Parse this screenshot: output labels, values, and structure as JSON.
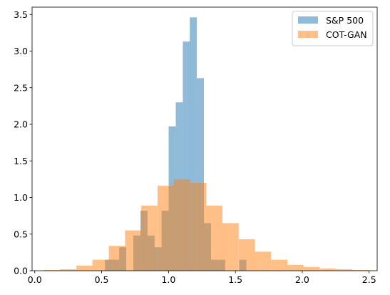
{
  "chart_data": {
    "type": "histogram",
    "xlim": [
      -0.02,
      2.56
    ],
    "ylim": [
      0,
      3.6
    ],
    "xticks": [
      0.0,
      0.5,
      1.0,
      1.5,
      2.0,
      2.5
    ],
    "xtick_labels": [
      "0.0",
      "0.5",
      "1.0",
      "1.5",
      "2.0",
      "2.5"
    ],
    "yticks": [
      0.0,
      0.5,
      1.0,
      1.5,
      2.0,
      2.5,
      3.0,
      3.5
    ],
    "ytick_labels": [
      "0.0",
      "0.5",
      "1.0",
      "1.5",
      "2.0",
      "2.5",
      "3.0",
      "3.5"
    ],
    "grid": false,
    "legend_position": "top-right",
    "series": [
      {
        "name": "S&P 500",
        "color": "#1f77b4",
        "alpha": 0.5,
        "bin_width": 0.0528,
        "bins": [
          [
            0.525,
            0.15
          ],
          [
            0.578,
            0.15
          ],
          [
            0.631,
            0.32
          ],
          [
            0.684,
            0.0
          ],
          [
            0.737,
            0.48
          ],
          [
            0.79,
            0.82
          ],
          [
            0.843,
            0.48
          ],
          [
            0.895,
            0.32
          ],
          [
            0.948,
            0.82
          ],
          [
            1.001,
            1.97
          ],
          [
            1.054,
            2.3
          ],
          [
            1.107,
            3.13
          ],
          [
            1.159,
            3.46
          ],
          [
            1.212,
            2.63
          ],
          [
            1.265,
            0.65
          ],
          [
            1.318,
            0.15
          ],
          [
            1.371,
            0.15
          ],
          [
            1.423,
            0.0
          ],
          [
            1.476,
            0.0
          ],
          [
            1.529,
            0.15
          ]
        ]
      },
      {
        "name": "COT-GAN",
        "color": "#ff7f0e",
        "alpha": 0.5,
        "bin_width": 0.1214,
        "bins": [
          [
            0.068,
            0.01
          ],
          [
            0.189,
            0.02
          ],
          [
            0.311,
            0.07
          ],
          [
            0.432,
            0.15
          ],
          [
            0.554,
            0.34
          ],
          [
            0.675,
            0.55
          ],
          [
            0.796,
            0.89
          ],
          [
            0.918,
            1.16
          ],
          [
            1.039,
            1.25
          ],
          [
            1.161,
            1.2
          ],
          [
            1.282,
            0.89
          ],
          [
            1.403,
            0.65
          ],
          [
            1.525,
            0.43
          ],
          [
            1.646,
            0.26
          ],
          [
            1.768,
            0.15
          ],
          [
            1.889,
            0.08
          ],
          [
            2.01,
            0.05
          ],
          [
            2.132,
            0.03
          ],
          [
            2.253,
            0.02
          ],
          [
            2.375,
            0.01
          ]
        ]
      }
    ]
  }
}
